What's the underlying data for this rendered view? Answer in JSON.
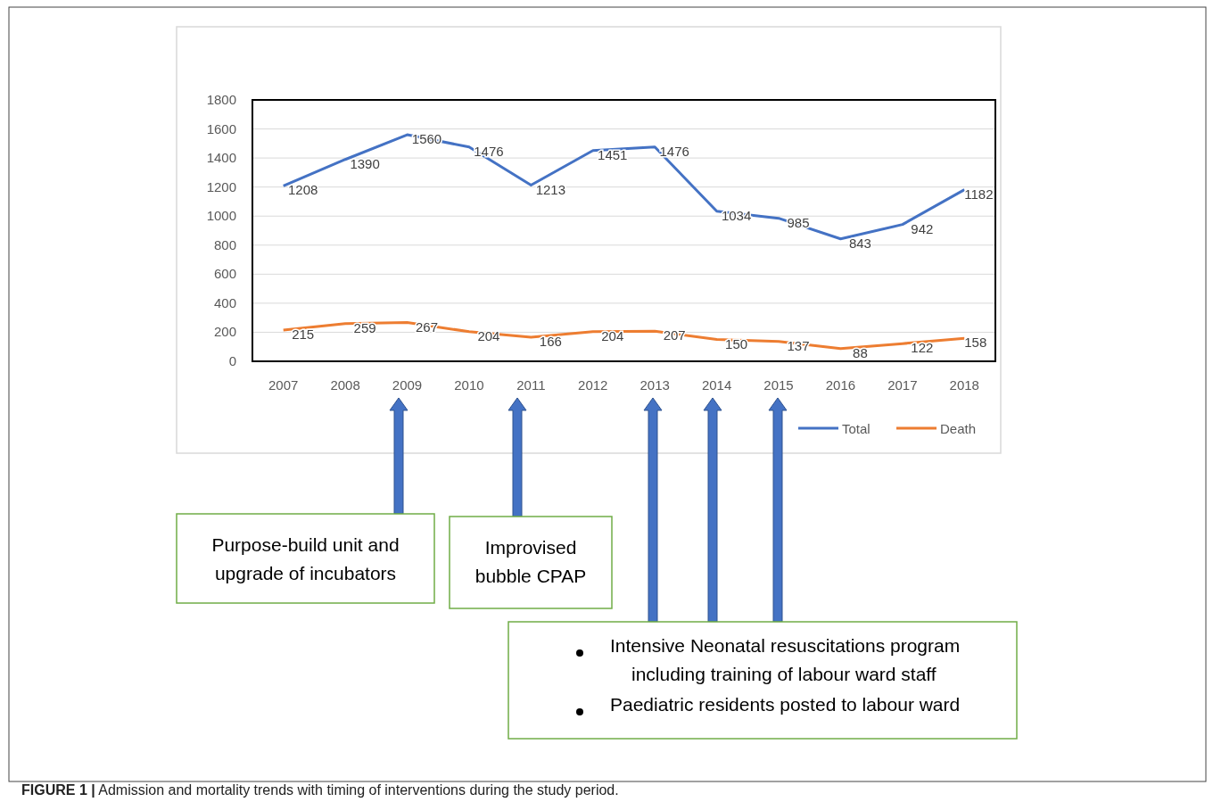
{
  "chart_data": {
    "type": "line",
    "categories": [
      "2007",
      "2008",
      "2009",
      "2010",
      "2011",
      "2012",
      "2013",
      "2014",
      "2015",
      "2016",
      "2017",
      "2018"
    ],
    "series": [
      {
        "name": "Total",
        "color": "#4472c4",
        "values": [
          1208,
          1390,
          1560,
          1476,
          1213,
          1451,
          1476,
          1034,
          985,
          843,
          942,
          1182
        ]
      },
      {
        "name": "Death",
        "color": "#ed7d31",
        "values": [
          215,
          259,
          267,
          204,
          166,
          204,
          207,
          150,
          137,
          88,
          122,
          158
        ]
      }
    ],
    "ylim": [
      0,
      1800
    ],
    "yticks": [
      0,
      200,
      400,
      600,
      800,
      1000,
      1200,
      1400,
      1600,
      1800
    ],
    "grid": "y",
    "legend": "bottom right",
    "data_labels": true,
    "marker": "none",
    "line_style": "solid",
    "annotations": [
      "Purpose-build unit and upgrade of incubators",
      "Improvised bubble CPAP",
      "Intensive Neonatal resuscitations program including training of labour ward staff",
      "Paediatric residents posted to labour ward",
      "FIGURE 1 | Admission and mortality trends with timing of interventions during the study period."
    ]
  }
}
